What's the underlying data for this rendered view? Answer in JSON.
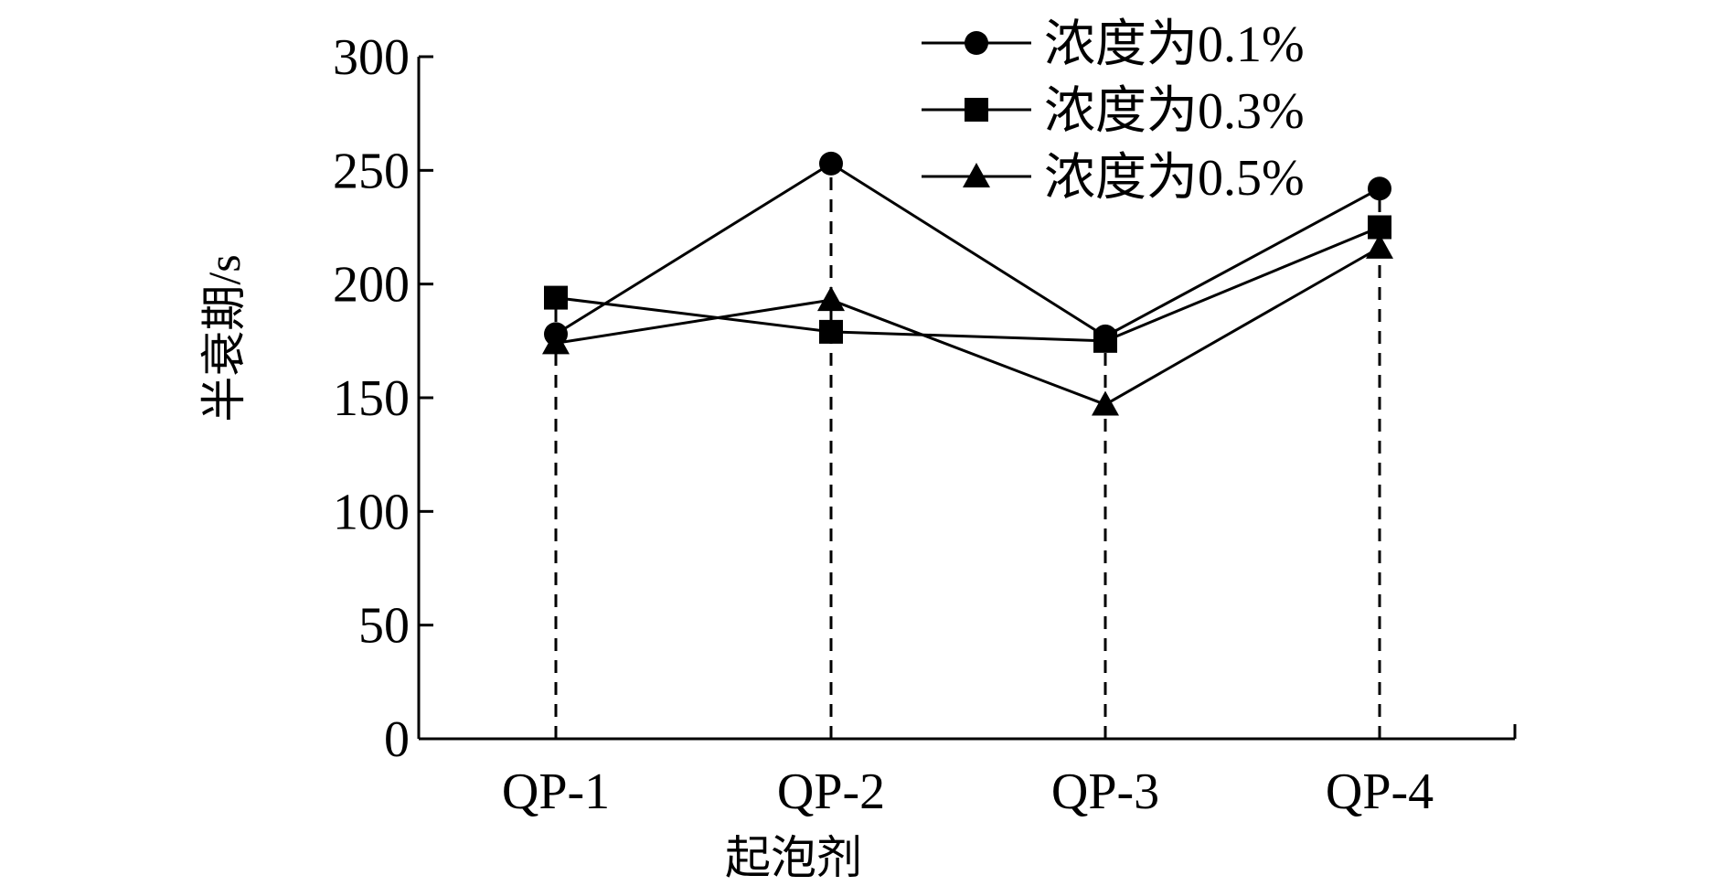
{
  "chart_data": {
    "type": "line",
    "title": "",
    "xlabel": "起泡剂",
    "ylabel": "半衰期/s",
    "categories": [
      "QP-1",
      "QP-2",
      "QP-3",
      "QP-4"
    ],
    "ylim": [
      0,
      300
    ],
    "yticks": [
      0,
      50,
      100,
      150,
      200,
      250,
      300
    ],
    "grid": false,
    "legend_position": "top-right",
    "series": [
      {
        "name": "浓度为0.1%",
        "marker": "circle",
        "values": [
          178,
          253,
          177,
          242
        ]
      },
      {
        "name": "浓度为0.3%",
        "marker": "square",
        "values": [
          194,
          179,
          175,
          225
        ]
      },
      {
        "name": "浓度为0.5%",
        "marker": "triangle",
        "values": [
          174,
          193,
          147,
          216
        ]
      }
    ],
    "guide_lines": {
      "style": "dashed",
      "to": "max-per-category"
    }
  }
}
